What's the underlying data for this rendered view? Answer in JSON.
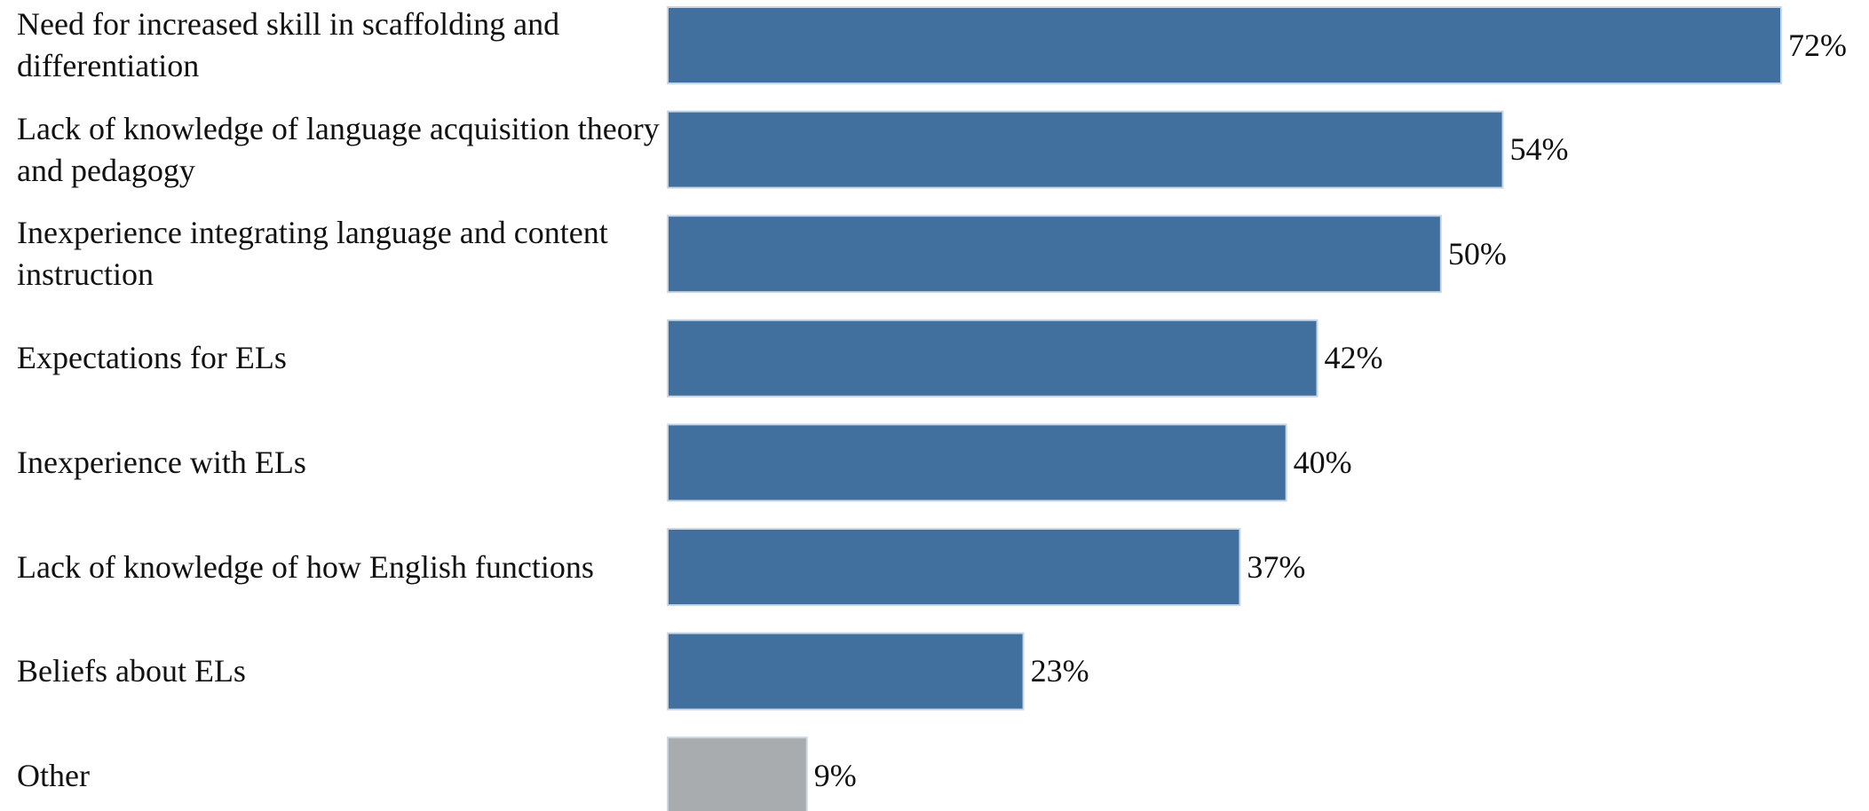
{
  "chart_data": {
    "type": "hbar",
    "categories": [
      "Need for increased skill in scaffolding and differentiation",
      "Lack of knowledge of language acquisition theory and pedagogy",
      "Inexperience integrating language and content instruction",
      "Expectations for ELs",
      "Inexperience with ELs",
      "Lack of knowledge of how English functions",
      "Beliefs about ELs",
      "Other"
    ],
    "values": [
      72,
      54,
      50,
      42,
      40,
      37,
      23,
      9
    ],
    "value_labels": [
      "72%",
      "54%",
      "50%",
      "42%",
      "40%",
      "37%",
      "23%",
      "9%"
    ],
    "colors": [
      "#41709f",
      "#41709f",
      "#41709f",
      "#41709f",
      "#41709f",
      "#41709f",
      "#41709f",
      "#a9acae"
    ]
  }
}
